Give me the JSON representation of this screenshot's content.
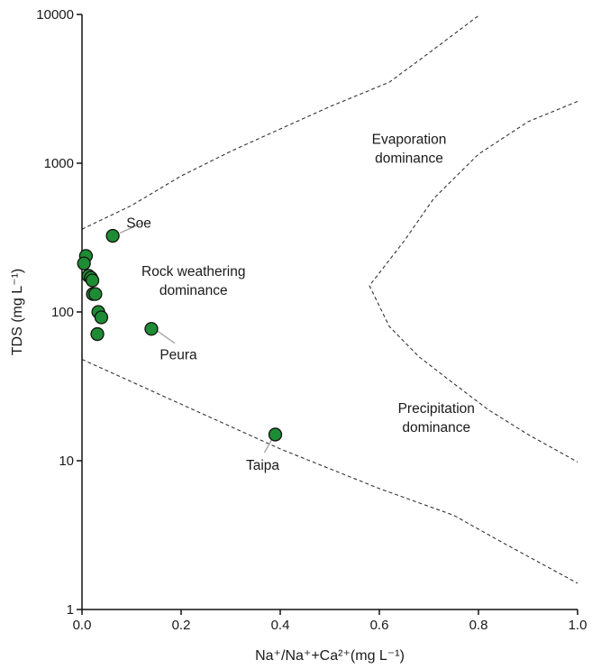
{
  "chart_data": {
    "type": "scatter",
    "title": "",
    "xlabel": "Na⁺/Na⁺+Ca²⁺(mg L⁻¹)",
    "ylabel": "TDS (mg L⁻¹)",
    "xlim": [
      0,
      1.0
    ],
    "ylim": [
      1,
      10000
    ],
    "y_scale": "log",
    "x_ticks": [
      0.0,
      0.2,
      0.4,
      0.6,
      0.8,
      1.0
    ],
    "x_tick_labels": [
      "0.0",
      "0.2",
      "0.4",
      "0.6",
      "0.8",
      "1.0"
    ],
    "y_ticks": [
      1,
      10,
      100,
      1000,
      10000
    ],
    "y_tick_labels": [
      "1",
      "10",
      "100",
      "1000",
      "10000"
    ],
    "grid": false,
    "marker_color": "#1e8c34",
    "marker_edge_color": "#111111",
    "boundary_color": "#333333",
    "points": [
      {
        "x": 0.062,
        "y": 325,
        "label": "Soe"
      },
      {
        "x": 0.008,
        "y": 238,
        "label": ""
      },
      {
        "x": 0.004,
        "y": 212,
        "label": ""
      },
      {
        "x": 0.013,
        "y": 175,
        "label": ""
      },
      {
        "x": 0.018,
        "y": 170,
        "label": ""
      },
      {
        "x": 0.021,
        "y": 163,
        "label": ""
      },
      {
        "x": 0.022,
        "y": 132,
        "label": ""
      },
      {
        "x": 0.027,
        "y": 132,
        "label": ""
      },
      {
        "x": 0.033,
        "y": 100,
        "label": ""
      },
      {
        "x": 0.039,
        "y": 92,
        "label": ""
      },
      {
        "x": 0.031,
        "y": 71,
        "label": ""
      },
      {
        "x": 0.14,
        "y": 77,
        "label": "Peura"
      },
      {
        "x": 0.39,
        "y": 15,
        "label": "Taipa"
      }
    ],
    "boundaries": [
      {
        "name": "upper",
        "x": [
          0.0,
          0.1,
          0.2,
          0.3,
          0.4,
          0.5,
          0.62,
          0.7,
          0.8
        ],
        "y": [
          360,
          520,
          820,
          1200,
          1700,
          2400,
          3500,
          5500,
          9800
        ]
      },
      {
        "name": "lower",
        "x": [
          0.0,
          0.2,
          0.4,
          0.6,
          0.75,
          0.85,
          1.0
        ],
        "y": [
          48,
          24,
          12,
          6.5,
          4.3,
          2.8,
          1.5
        ]
      },
      {
        "name": "right",
        "x": [
          1.0,
          0.9,
          0.8,
          0.71,
          0.65,
          0.58,
          0.62,
          0.68,
          0.75,
          0.82,
          0.9,
          1.0
        ],
        "y": [
          2600,
          1900,
          1150,
          580,
          300,
          150,
          80,
          50,
          33,
          22,
          15,
          9.8
        ]
      }
    ],
    "region_labels": [
      {
        "lines": [
          "Evaporation",
          "dominance"
        ],
        "x": 0.66,
        "y": 1350
      },
      {
        "lines": [
          "Rock weathering",
          "dominance"
        ],
        "x": 0.225,
        "y": 175
      },
      {
        "lines": [
          "Precipitation",
          "dominance"
        ],
        "x": 0.715,
        "y": 21
      }
    ]
  }
}
